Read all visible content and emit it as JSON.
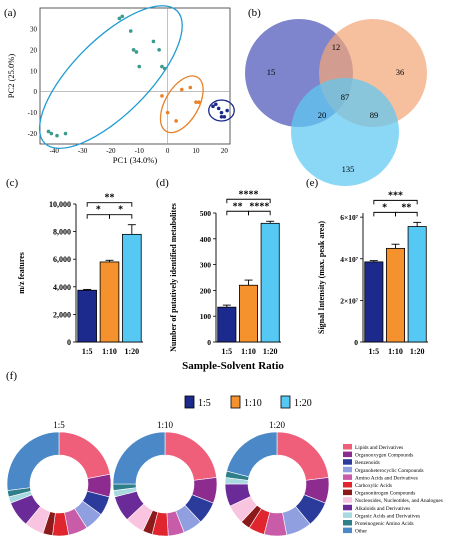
{
  "panels": {
    "a": "(a)",
    "b": "(b)",
    "c": "(c)",
    "d": "(d)",
    "e": "(e)",
    "f": "(f)"
  },
  "shared_xlabel": "Sample-Solvent Ratio",
  "colors": {
    "r1_5": "#1b2a8c",
    "r1_10": "#f5922e",
    "r1_20": "#56c8f4",
    "pca_blue": "#1f9bd3",
    "pca_orange": "#e8822a",
    "pca_navy": "#1b2a8c",
    "pca_teal": "#3a9a8c"
  },
  "legend_top": [
    "1:5",
    "1:10",
    "1:20"
  ],
  "chart_data": [
    {
      "panel": "a",
      "type": "scatter",
      "title": "",
      "xlabel": "PC1 (34.0%)",
      "ylabel": "PC2 (25.0%)",
      "xlim": [
        -45,
        22
      ],
      "ylim": [
        -25,
        40
      ],
      "xticks": [
        -40,
        -30,
        -20,
        -10,
        0,
        10,
        20
      ],
      "yticks": [
        -20,
        -10,
        0,
        10,
        20,
        30
      ],
      "series": [
        {
          "name": "1:20",
          "color": "#3a9a8c",
          "x": [
            -42,
            -41,
            -39,
            -36,
            -17,
            -16,
            -13,
            -12,
            -11,
            -10,
            -5,
            -3,
            -2,
            -1
          ],
          "y": [
            -19,
            -20,
            -21,
            -20,
            35,
            36,
            29,
            20,
            19,
            12,
            24,
            20,
            12,
            11
          ]
        },
        {
          "name": "1:10",
          "color": "#e8822a",
          "x": [
            -2,
            0,
            3,
            5,
            8,
            10,
            11
          ],
          "y": [
            -2,
            -10,
            -14,
            1,
            2,
            -5,
            -5
          ]
        },
        {
          "name": "1:5",
          "color": "#1b2a8c",
          "x": [
            16,
            17,
            18,
            19,
            19,
            20,
            21
          ],
          "y": [
            -7,
            -6,
            -8,
            -10,
            -12,
            -12,
            -9
          ]
        }
      ],
      "ellipses": [
        {
          "cx": -20,
          "cy": 7,
          "rx": 33,
          "ry": 18,
          "angle": 45,
          "color": "#1f9bd3"
        },
        {
          "cx": 5,
          "cy": -6,
          "rx": 11,
          "ry": 8,
          "angle": 60,
          "color": "#e8822a"
        },
        {
          "cx": 19,
          "cy": -9,
          "rx": 4.5,
          "ry": 5,
          "angle": 0,
          "color": "#1b2a8c"
        }
      ]
    },
    {
      "panel": "b",
      "type": "venn",
      "sets": [
        {
          "name": "1:5",
          "color": "#4c56b8"
        },
        {
          "name": "1:10",
          "color": "#f3a679"
        },
        {
          "name": "1:20",
          "color": "#5ec9f2"
        }
      ],
      "regions": {
        "only_1": "15",
        "only_2": "36",
        "only_3": "135",
        "r12": "12",
        "r13": "20",
        "r23": "89",
        "r123": "87"
      }
    },
    {
      "panel": "c",
      "type": "bar",
      "categories": [
        "1:5",
        "1:10",
        "1:20"
      ],
      "values": [
        3750,
        5800,
        7800
      ],
      "errors": [
        60,
        120,
        700
      ],
      "ylabel": "m/z features",
      "ylim": [
        0,
        10000
      ],
      "yticks": [
        "0",
        "2,000",
        "4,000",
        "6,000",
        "8,000",
        "10,000"
      ],
      "ytick_values": [
        0,
        2000,
        4000,
        6000,
        8000,
        10000
      ],
      "significance": [
        {
          "from": 1,
          "to": 2,
          "label": "*"
        },
        {
          "from": 2,
          "to": 3,
          "label": "*"
        },
        {
          "from": 1,
          "to": 3,
          "label": "**"
        }
      ]
    },
    {
      "panel": "d",
      "type": "bar",
      "categories": [
        "1:5",
        "1:10",
        "1:20"
      ],
      "values": [
        135,
        220,
        460
      ],
      "errors": [
        8,
        20,
        8
      ],
      "ylabel": "Number of putatively identified metabolites",
      "ylim": [
        0,
        500
      ],
      "yticks": [
        "0",
        "100",
        "200",
        "300",
        "400",
        "500"
      ],
      "ytick_values": [
        0,
        100,
        200,
        300,
        400,
        500
      ],
      "significance": [
        {
          "from": 1,
          "to": 2,
          "label": "**"
        },
        {
          "from": 2,
          "to": 3,
          "label": "****"
        },
        {
          "from": 1,
          "to": 3,
          "label": "****"
        }
      ]
    },
    {
      "panel": "e",
      "type": "bar",
      "categories": [
        "1:5",
        "1:10",
        "1:20"
      ],
      "values": [
        38500000.0,
        45000000.0,
        55500000.0
      ],
      "errors": [
        600000.0,
        2000000.0,
        2000000.0
      ],
      "ylabel": "Signal Intensity (max. peak area)",
      "ylim": [
        0,
        62000000.0
      ],
      "yticks": [
        "0",
        "2×10⁷",
        "4×10⁷",
        "6×10⁷"
      ],
      "ytick_values": [
        0,
        20000000.0,
        40000000.0,
        60000000.0
      ],
      "significance": [
        {
          "from": 1,
          "to": 2,
          "label": "*"
        },
        {
          "from": 2,
          "to": 3,
          "label": "**"
        },
        {
          "from": 1,
          "to": 3,
          "label": "***"
        }
      ]
    },
    {
      "panel": "f",
      "type": "pie",
      "categories": [
        "Lipids and Derivatives",
        "Organooxygen Compounds",
        "Benzenoids",
        "Organoheterocyclic Compounds",
        "Amino Acids and Derivatives",
        "Carboxylic Acids",
        "Organonitrogen Compounds",
        "Nucleosides, Nucleotides, and Analogues",
        "Alkaloids and Derivatives",
        "Organic Acids and Derivatives",
        "Proteinogenic Amino Acids",
        "Other"
      ],
      "category_colors": [
        "#ef5f7a",
        "#8d2b8f",
        "#2b3b9c",
        "#8f9fe0",
        "#c95ca8",
        "#e0252f",
        "#8c1a1a",
        "#f9c4df",
        "#6a2a98",
        "#a8d8e0",
        "#2f7f8a",
        "#4a88c8"
      ],
      "donuts": [
        {
          "title": "1:5",
          "values": [
            22,
            7,
            6,
            6,
            6,
            5,
            3,
            6,
            8,
            2,
            2,
            27
          ]
        },
        {
          "title": "1:10",
          "values": [
            23,
            8,
            7,
            6,
            5,
            5,
            3,
            6,
            8,
            2,
            2,
            25
          ]
        },
        {
          "title": "1:20",
          "values": [
            23,
            8,
            8,
            8,
            7,
            5,
            3,
            6,
            7,
            2,
            2,
            21
          ]
        }
      ]
    }
  ]
}
